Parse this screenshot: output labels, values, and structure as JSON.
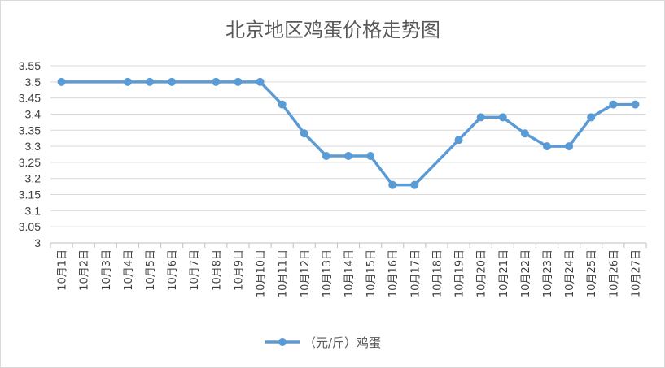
{
  "chart_data": {
    "type": "line",
    "title": "北京地区鸡蛋价格走势图",
    "categories": [
      "10月1日",
      "10月2日",
      "10月3日",
      "10月4日",
      "10月5日",
      "10月6日",
      "10月7日",
      "10月8日",
      "10月9日",
      "10月10日",
      "10月11日",
      "10月12日",
      "10月13日",
      "10月14日",
      "10月15日",
      "10月16日",
      "10月17日",
      "10月18日",
      "10月19日",
      "10月20日",
      "10月21日",
      "10月22日",
      "10月23日",
      "10月24日",
      "10月25日",
      "10月26日",
      "10月27日"
    ],
    "series": [
      {
        "name": "（元/斤）鸡蛋",
        "values": [
          3.5,
          null,
          null,
          3.5,
          3.5,
          3.5,
          null,
          3.5,
          3.5,
          3.5,
          3.43,
          3.34,
          3.27,
          3.27,
          3.27,
          3.18,
          3.18,
          null,
          3.32,
          3.39,
          3.39,
          3.34,
          3.3,
          3.3,
          3.39,
          3.43,
          3.43
        ]
      }
    ],
    "ylim": [
      3,
      3.55
    ],
    "yticks": [
      "3.55",
      "3.5",
      "3.45",
      "3.4",
      "3.35",
      "3.3",
      "3.25",
      "3.2",
      "3.15",
      "3.1",
      "3.05",
      "3"
    ],
    "grid": true,
    "legend": "bottom",
    "colors": {
      "line": "#5b9bd5",
      "grid": "#d9d9d9",
      "axis": "#bfbfbf"
    }
  }
}
